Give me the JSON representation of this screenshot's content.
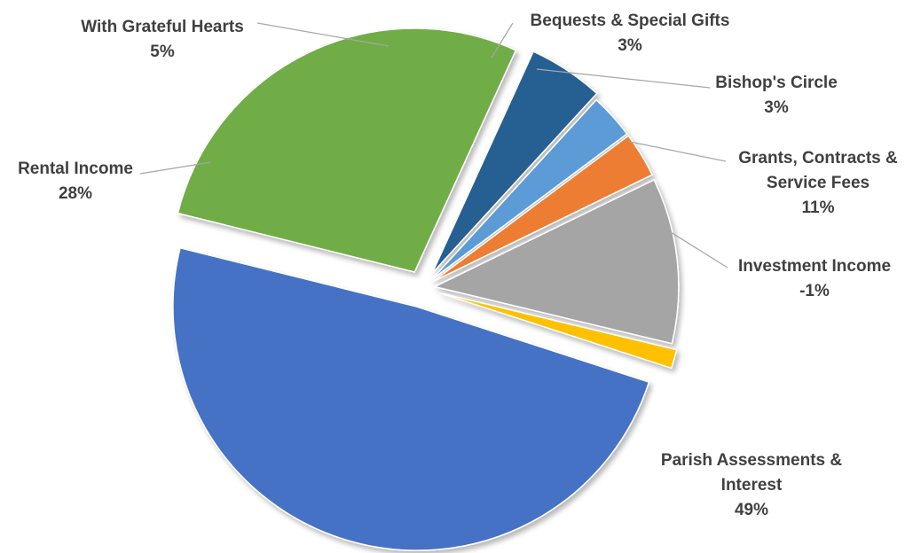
{
  "chart_data": {
    "type": "pie",
    "title": "",
    "legend": "none",
    "slices": [
      {
        "lines": [
          "Parish Assessments &",
          "Interest"
        ],
        "pct_label": "49%",
        "value": 49,
        "color": "#4472C4"
      },
      {
        "lines": [
          "Rental Income"
        ],
        "pct_label": "28%",
        "value": 28,
        "color": "#70AD47"
      },
      {
        "lines": [
          "With Grateful Hearts"
        ],
        "pct_label": "5%",
        "value": 5,
        "color": "#255E91"
      },
      {
        "lines": [
          "Bequests & Special Gifts"
        ],
        "pct_label": "3%",
        "value": 3,
        "color": "#5B9BD5"
      },
      {
        "lines": [
          "Bishop's Circle"
        ],
        "pct_label": "3%",
        "value": 3,
        "color": "#ED7D31"
      },
      {
        "lines": [
          "Grants, Contracts &",
          "Service Fees"
        ],
        "pct_label": "11%",
        "value": 11,
        "color": "#A5A5A5"
      },
      {
        "lines": [
          "Investment Income"
        ],
        "pct_label": "-1%",
        "value": -1,
        "color": "#FFC000"
      }
    ]
  }
}
